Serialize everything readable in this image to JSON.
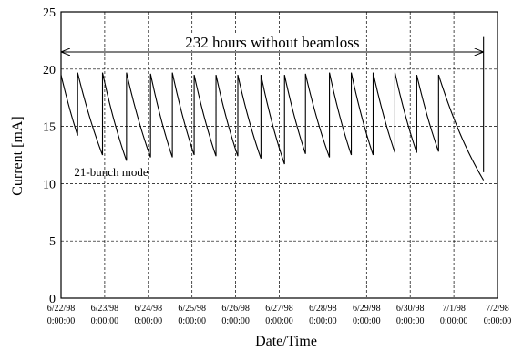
{
  "chart_data": {
    "type": "line",
    "title": "",
    "xlabel": "Date/Time",
    "ylabel": "Current [mA]",
    "ylim": [
      0,
      25
    ],
    "yticks": [
      0,
      5,
      10,
      15,
      20,
      25
    ],
    "x_unit": "days from 6/22/98 0:00:00",
    "xlim": [
      0,
      10
    ],
    "xtick_labels": [
      {
        "date": "6/22/98",
        "time": "0:00:00"
      },
      {
        "date": "6/23/98",
        "time": "0:00:00"
      },
      {
        "date": "6/24/98",
        "time": "0:00:00"
      },
      {
        "date": "6/25/98",
        "time": "0:00:00"
      },
      {
        "date": "6/26/98",
        "time": "0:00:00"
      },
      {
        "date": "6/27/98",
        "time": "0:00:00"
      },
      {
        "date": "6/28/98",
        "time": "0:00:00"
      },
      {
        "date": "6/29/98",
        "time": "0:00:00"
      },
      {
        "date": "6/30/98",
        "time": "0:00:00"
      },
      {
        "date": "7/1/98",
        "time": "0:00:00"
      },
      {
        "date": "7/2/98",
        "time": "0:00:00"
      }
    ],
    "grid": true,
    "series": [
      {
        "color": "#000000",
        "fills": [
          {
            "start": 0.0,
            "end": 0.38,
            "i0": 19.5,
            "i1": 14.2
          },
          {
            "start": 0.38,
            "end": 0.95,
            "i0": 19.7,
            "i1": 12.5
          },
          {
            "start": 0.95,
            "end": 1.5,
            "i0": 19.7,
            "i1": 12.0
          },
          {
            "start": 1.5,
            "end": 2.05,
            "i0": 19.7,
            "i1": 12.3
          },
          {
            "start": 2.05,
            "end": 2.55,
            "i0": 19.6,
            "i1": 12.3
          },
          {
            "start": 2.55,
            "end": 3.05,
            "i0": 19.7,
            "i1": 12.5
          },
          {
            "start": 3.05,
            "end": 3.55,
            "i0": 19.5,
            "i1": 12.4
          },
          {
            "start": 3.55,
            "end": 4.05,
            "i0": 19.5,
            "i1": 12.4
          },
          {
            "start": 4.05,
            "end": 4.58,
            "i0": 19.5,
            "i1": 12.2
          },
          {
            "start": 4.58,
            "end": 5.12,
            "i0": 19.5,
            "i1": 11.7
          },
          {
            "start": 5.12,
            "end": 5.6,
            "i0": 19.5,
            "i1": 12.6
          },
          {
            "start": 5.6,
            "end": 6.15,
            "i0": 19.6,
            "i1": 12.3
          },
          {
            "start": 6.15,
            "end": 6.65,
            "i0": 19.7,
            "i1": 12.5
          },
          {
            "start": 6.65,
            "end": 7.15,
            "i0": 19.7,
            "i1": 12.5
          },
          {
            "start": 7.15,
            "end": 7.65,
            "i0": 19.7,
            "i1": 12.7
          },
          {
            "start": 7.65,
            "end": 8.15,
            "i0": 19.7,
            "i1": 12.7
          },
          {
            "start": 8.15,
            "end": 8.65,
            "i0": 19.5,
            "i1": 12.8
          },
          {
            "start": 8.65,
            "end": 9.68,
            "i0": 19.5,
            "i1": 10.3
          }
        ],
        "final_spike": {
          "x": 9.68,
          "y0": 11.0,
          "y1": 22.8
        }
      }
    ],
    "annotations": [
      {
        "text": "232 hours without beamloss",
        "arrow_from": 0.0,
        "arrow_to": 9.68,
        "arrow_y": 21.5
      },
      {
        "text": "21-bunch mode",
        "x": 0.3,
        "y": 11.0
      }
    ]
  }
}
